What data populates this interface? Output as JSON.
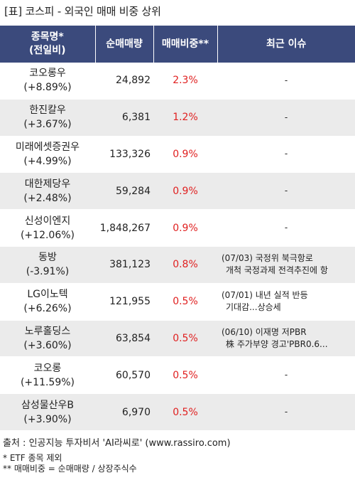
{
  "title": "[표] 코스피 - 외국인 매매 비중 상위",
  "headers": {
    "name_line1": "종목명*",
    "name_line2": "(전일비)",
    "volume": "순매매량",
    "ratio": "매매비중**",
    "issue": "최근 이슈"
  },
  "rows": [
    {
      "name": "코오롱우",
      "change": "(+8.89%)",
      "volume": "24,892",
      "ratio": "2.3%",
      "issue1": "-",
      "issue2": ""
    },
    {
      "name": "한진칼우",
      "change": "(+3.67%)",
      "volume": "6,381",
      "ratio": "1.2%",
      "issue1": "-",
      "issue2": ""
    },
    {
      "name": "미래에셋증권우",
      "change": "(+4.99%)",
      "volume": "133,326",
      "ratio": "0.9%",
      "issue1": "-",
      "issue2": ""
    },
    {
      "name": "대한제당우",
      "change": "(+2.48%)",
      "volume": "59,284",
      "ratio": "0.9%",
      "issue1": "-",
      "issue2": ""
    },
    {
      "name": "신성이엔지",
      "change": "(+12.06%)",
      "volume": "1,848,267",
      "ratio": "0.9%",
      "issue1": "-",
      "issue2": ""
    },
    {
      "name": "동방",
      "change": "(-3.91%)",
      "volume": "381,123",
      "ratio": "0.8%",
      "issue1": "(07/03) 국정위 북극항로",
      "issue2": "개척 국정과제 전격추진에 항"
    },
    {
      "name": "LG이노텍",
      "change": "(+6.26%)",
      "volume": "121,955",
      "ratio": "0.5%",
      "issue1": "(07/01) 내년 실적 반등",
      "issue2": "기대감...상승세"
    },
    {
      "name": "노루홀딩스",
      "change": "(+3.60%)",
      "volume": "63,854",
      "ratio": "0.5%",
      "issue1": "(06/10) 이재명 저PBR",
      "issue2": "株 주가부양 경고'PBR0.6..."
    },
    {
      "name": "코오롱",
      "change": "(+11.59%)",
      "volume": "60,570",
      "ratio": "0.5%",
      "issue1": "-",
      "issue2": ""
    },
    {
      "name": "삼성물산우B",
      "change": "(+3.90%)",
      "volume": "6,970",
      "ratio": "0.5%",
      "issue1": "-",
      "issue2": ""
    }
  ],
  "footer": {
    "source": "출처 : 인공지능 투자비서 'AI라씨로' (www.rassiro.com)",
    "note1": "* ETF 종목 제외",
    "note2": "** 매매비중 = 순매매량 / 상장주식수"
  },
  "colors": {
    "header_bg": "#3b4a7c",
    "ratio_text": "#e02020",
    "alt_row": "#ebebeb"
  }
}
